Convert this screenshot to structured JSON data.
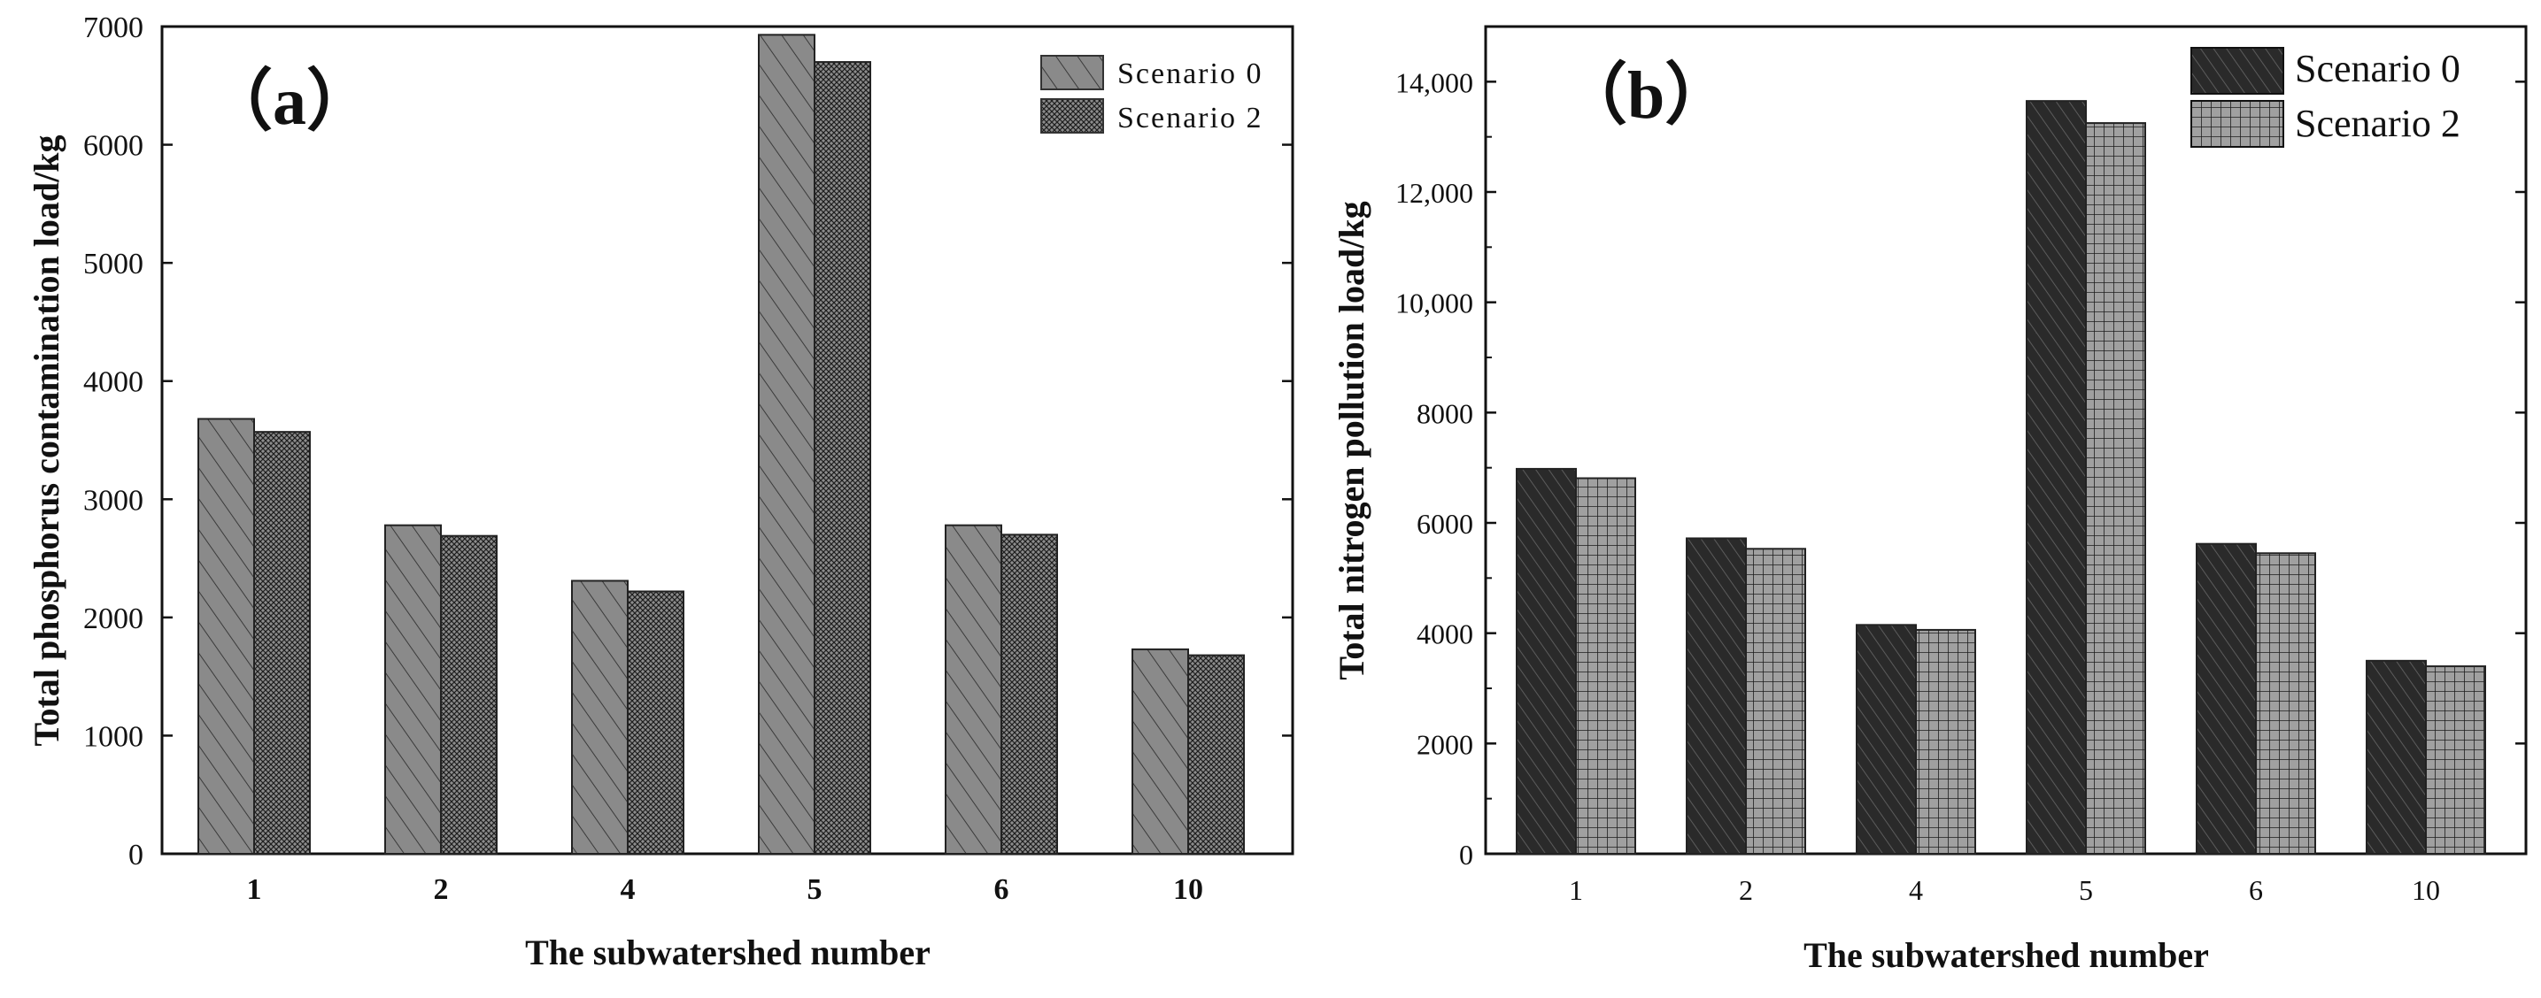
{
  "chart_data": [
    {
      "type": "bar",
      "panel_label": "（a）",
      "title": "",
      "xlabel": "The subwatershed number",
      "ylabel": "Total phosphorus contamination load/kg",
      "categories": [
        "1",
        "2",
        "4",
        "5",
        "6",
        "10"
      ],
      "series": [
        {
          "name": "Scenario 0",
          "values": [
            3680,
            2780,
            2310,
            6930,
            2780,
            1730
          ],
          "color": "#8a8a8a",
          "pattern": "diagonal-hatch"
        },
        {
          "name": "Scenario 2",
          "values": [
            3570,
            2690,
            2220,
            6700,
            2700,
            1680
          ],
          "color": "#8a8a8a",
          "pattern": "crosshatch"
        }
      ],
      "ylim": [
        0,
        7000
      ],
      "yticks": [
        0,
        1000,
        2000,
        3000,
        4000,
        5000,
        6000,
        7000
      ],
      "ytick_labels": [
        "0",
        "1000",
        "2000",
        "3000",
        "4000",
        "5000",
        "6000",
        "7000"
      ],
      "legend_position": "top-right",
      "grid": false
    },
    {
      "type": "bar",
      "panel_label": "（b）",
      "title": "",
      "xlabel": "The subwatershed number",
      "ylabel": "Total nitrogen pollution load/kg",
      "categories": [
        "1",
        "2",
        "4",
        "5",
        "6",
        "10"
      ],
      "series": [
        {
          "name": "Scenario 0",
          "values": [
            6980,
            5720,
            4150,
            13650,
            5620,
            3500
          ],
          "color": "#2a2a2a",
          "pattern": "diagonal-hatch"
        },
        {
          "name": "Scenario 2",
          "values": [
            6810,
            5530,
            4060,
            13250,
            5450,
            3400
          ],
          "color": "#9a9a9a",
          "pattern": "grid"
        }
      ],
      "ylim": [
        0,
        15000
      ],
      "yticks": [
        0,
        2000,
        4000,
        6000,
        8000,
        10000,
        12000,
        14000
      ],
      "ytick_labels": [
        "0",
        "2000",
        "4000",
        "6000",
        "8000",
        "10,000",
        "12,000",
        "14,000"
      ],
      "legend_position": "top-right",
      "grid": false
    }
  ]
}
